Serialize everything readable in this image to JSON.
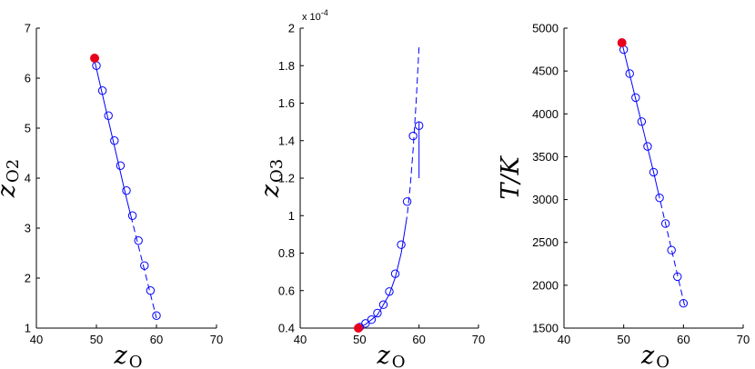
{
  "chart_data": [
    {
      "type": "line",
      "xlabel": "z",
      "xlabel_sub": "O",
      "ylabel": "z",
      "ylabel_sub": "O2",
      "xlim": [
        40,
        70
      ],
      "ylim": [
        1,
        7
      ],
      "xticks": [
        "40",
        "50",
        "60",
        "70"
      ],
      "yticks": [
        "1",
        "2",
        "3",
        "4",
        "5",
        "6",
        "7"
      ],
      "multiplier": "",
      "colors": {
        "series": "#0000ff",
        "highlight": "#e8001c"
      },
      "series": [
        {
          "style": "solid-then-dashed",
          "x": [
            50,
            51,
            52,
            53,
            54,
            55,
            56,
            57,
            58,
            59,
            60
          ],
          "y": [
            6.25,
            5.75,
            5.25,
            4.75,
            4.25,
            3.75,
            3.25,
            2.75,
            2.25,
            1.75,
            1.25
          ]
        }
      ],
      "curve": {
        "x": [
          49.5,
          55,
          60
        ],
        "y": [
          6.45,
          3.6,
          1.2
        ]
      },
      "highlight_point": {
        "x": 49.7,
        "y": 6.4
      }
    },
    {
      "type": "line",
      "xlabel": "z",
      "xlabel_sub": "O",
      "ylabel": "z",
      "ylabel_sub": "O3",
      "xlim": [
        40,
        70
      ],
      "ylim": [
        0.4,
        2.0
      ],
      "xticks": [
        "40",
        "50",
        "60",
        "70"
      ],
      "yticks": [
        "0.4",
        "0.6",
        "0.8",
        "1",
        "1.2",
        "1.4",
        "1.6",
        "1.8",
        "2"
      ],
      "multiplier": "x 10",
      "multiplier_exp": "-4",
      "colors": {
        "series": "#0000ff",
        "highlight": "#e8001c"
      },
      "series": [
        {
          "style": "solid-then-dashed",
          "x": [
            50,
            51,
            52,
            53,
            54,
            55,
            56,
            57,
            58,
            59,
            60
          ],
          "y": [
            0.405,
            0.425,
            0.445,
            0.48,
            0.525,
            0.595,
            0.69,
            0.845,
            1.075,
            1.425,
            1.48
          ]
        }
      ],
      "curve": {
        "x": [
          49.7,
          51,
          53,
          55,
          56,
          57,
          58,
          58.5,
          59,
          59.5,
          60
        ],
        "y": [
          0.4,
          0.42,
          0.47,
          0.58,
          0.67,
          0.8,
          1.0,
          1.15,
          1.35,
          1.6,
          1.9
        ]
      },
      "vertical_segment": {
        "x": 60,
        "y": [
          1.2,
          1.5
        ]
      },
      "highlight_point": {
        "x": 49.8,
        "y": 0.4
      }
    },
    {
      "type": "line",
      "xlabel": "z",
      "xlabel_sub": "O",
      "ylabel": "T/K",
      "ylabel_sub": "",
      "xlim": [
        40,
        70
      ],
      "ylim": [
        1500,
        5000
      ],
      "xticks": [
        "40",
        "50",
        "60",
        "70"
      ],
      "yticks": [
        "1500",
        "2000",
        "2500",
        "3000",
        "3500",
        "4000",
        "4500",
        "5000"
      ],
      "multiplier": "",
      "colors": {
        "series": "#0000ff",
        "highlight": "#e8001c"
      },
      "series": [
        {
          "style": "solid-then-dashed",
          "x": [
            50,
            51,
            52,
            53,
            54,
            55,
            56,
            57,
            58,
            59,
            60
          ],
          "y": [
            4750,
            4470,
            4190,
            3910,
            3620,
            3320,
            3020,
            2720,
            2410,
            2100,
            1790
          ]
        }
      ],
      "curve": {
        "x": [
          49.7,
          55,
          60.2
        ],
        "y": [
          4830,
          3320,
          1760
        ]
      },
      "highlight_point": {
        "x": 49.7,
        "y": 4830
      }
    }
  ]
}
